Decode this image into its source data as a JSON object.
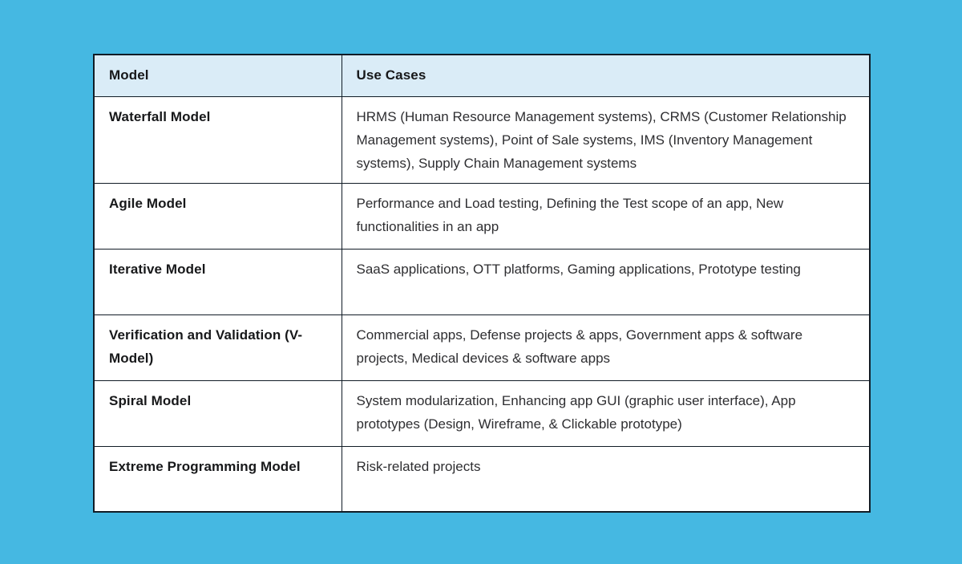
{
  "colors": {
    "page_bg": "#45b8e2",
    "header_bg": "#daecf7",
    "border": "#111c26",
    "cell_bg": "#ffffff",
    "heading_text": "#17181a",
    "body_text": "#2e2e31"
  },
  "chart_data": {
    "type": "table",
    "title": "",
    "columns": [
      "Model",
      "Use Cases"
    ],
    "rows": [
      [
        "Waterfall Model",
        "HRMS (Human Resource Management systems), CRMS (Customer Relationship Management systems), Point of Sale systems, IMS (Inventory Management systems), Supply Chain Management systems"
      ],
      [
        "Agile Model",
        "Performance and Load testing, Defining the Test scope of an app, New functionalities in an app"
      ],
      [
        "Iterative Model",
        "SaaS applications, OTT platforms, Gaming applications, Prototype testing"
      ],
      [
        "Verification and Validation (V-Model)",
        "Commercial apps, Defense projects & apps, Government apps & software projects, Medical devices & software apps"
      ],
      [
        "Spiral Model",
        "System modularization, Enhancing app GUI (graphic user interface), App prototypes (Design, Wireframe, & Clickable prototype)"
      ],
      [
        "Extreme Programming Model",
        "Risk-related projects"
      ]
    ]
  }
}
